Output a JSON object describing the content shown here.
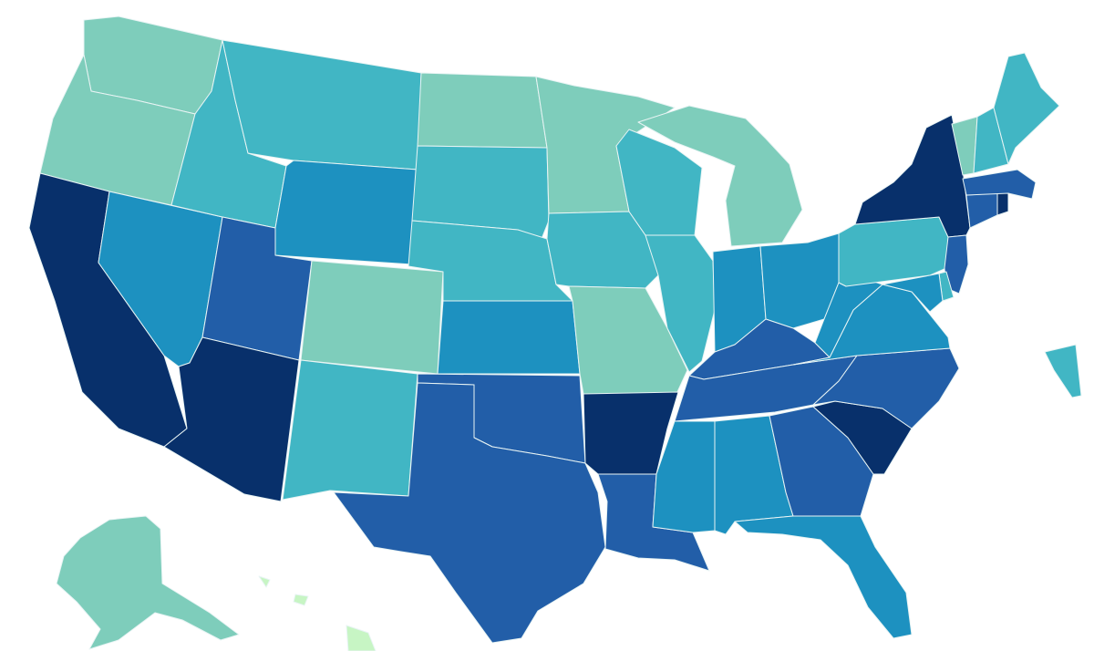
{
  "legend_colors": {
    "c0": "#c7f5c4",
    "c1": "#7ecdbb",
    "c2": "#41b6c4",
    "c3": "#1d91c0",
    "c4": "#225ea8",
    "c5": "#08306b"
  },
  "states": [
    {
      "id": "WA",
      "cls": "c1"
    },
    {
      "id": "OR",
      "cls": "c1"
    },
    {
      "id": "CA",
      "cls": "c5"
    },
    {
      "id": "NV",
      "cls": "c3"
    },
    {
      "id": "ID",
      "cls": "c2"
    },
    {
      "id": "MT",
      "cls": "c2"
    },
    {
      "id": "WY",
      "cls": "c3"
    },
    {
      "id": "UT",
      "cls": "c4"
    },
    {
      "id": "AZ",
      "cls": "c5"
    },
    {
      "id": "CO",
      "cls": "c1"
    },
    {
      "id": "NM",
      "cls": "c2"
    },
    {
      "id": "ND",
      "cls": "c1"
    },
    {
      "id": "SD",
      "cls": "c2"
    },
    {
      "id": "NE",
      "cls": "c2"
    },
    {
      "id": "KS",
      "cls": "c3"
    },
    {
      "id": "OK",
      "cls": "c4"
    },
    {
      "id": "TX",
      "cls": "c4"
    },
    {
      "id": "MN",
      "cls": "c1"
    },
    {
      "id": "IA",
      "cls": "c2"
    },
    {
      "id": "MO",
      "cls": "c1"
    },
    {
      "id": "AR",
      "cls": "c5"
    },
    {
      "id": "LA",
      "cls": "c4"
    },
    {
      "id": "WI",
      "cls": "c2"
    },
    {
      "id": "IL",
      "cls": "c2"
    },
    {
      "id": "MI",
      "cls": "c1"
    },
    {
      "id": "IN",
      "cls": "c3"
    },
    {
      "id": "OH",
      "cls": "c3"
    },
    {
      "id": "KY",
      "cls": "c4"
    },
    {
      "id": "TN",
      "cls": "c4"
    },
    {
      "id": "MS",
      "cls": "c3"
    },
    {
      "id": "AL",
      "cls": "c3"
    },
    {
      "id": "GA",
      "cls": "c4"
    },
    {
      "id": "FL",
      "cls": "c3"
    },
    {
      "id": "SC",
      "cls": "c5"
    },
    {
      "id": "NC",
      "cls": "c4"
    },
    {
      "id": "VA",
      "cls": "c3"
    },
    {
      "id": "WV",
      "cls": "c3"
    },
    {
      "id": "PA",
      "cls": "c2"
    },
    {
      "id": "NY",
      "cls": "c5"
    },
    {
      "id": "NJ",
      "cls": "c4"
    },
    {
      "id": "DE",
      "cls": "c2"
    },
    {
      "id": "MD",
      "cls": "c3"
    },
    {
      "id": "CT",
      "cls": "c4"
    },
    {
      "id": "RI",
      "cls": "c5"
    },
    {
      "id": "MA",
      "cls": "c4"
    },
    {
      "id": "VT",
      "cls": "c1"
    },
    {
      "id": "NH",
      "cls": "c2"
    },
    {
      "id": "ME",
      "cls": "c2"
    },
    {
      "id": "AK",
      "cls": "c1"
    },
    {
      "id": "HI",
      "cls": "c0"
    },
    {
      "id": "PR",
      "cls": "c2"
    }
  ]
}
